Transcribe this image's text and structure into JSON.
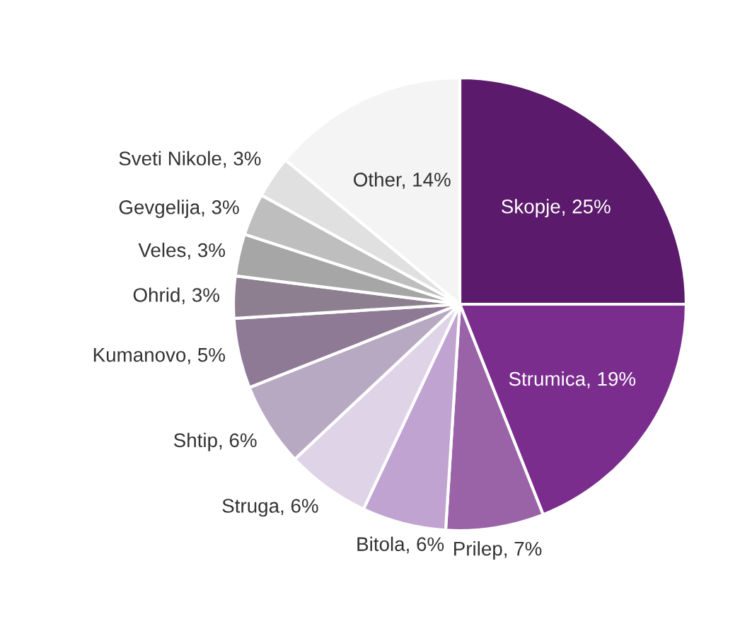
{
  "chart_data": {
    "type": "pie",
    "categories": [
      "Skopje",
      "Strumica",
      "Prilep",
      "Bitola",
      "Struga",
      "Shtip",
      "Kumanovo",
      "Ohrid",
      "Veles",
      "Gevgelija",
      "Sveti Nikole",
      "Other"
    ],
    "values": [
      25,
      19,
      7,
      6,
      6,
      6,
      5,
      3,
      3,
      3,
      3,
      14
    ],
    "value_labels": [
      "25%",
      "19%",
      "7%",
      "6%",
      "6%",
      "6%",
      "5%",
      "3%",
      "3%",
      "3%",
      "3%",
      "14%"
    ],
    "colors": [
      "#5b1a6b",
      "#7b2d8e",
      "#9a63a8",
      "#c0a3d0",
      "#dfd3e8",
      "#b8a9c2",
      "#8f7a96",
      "#8d7f90",
      "#a6a6a6",
      "#bebebe",
      "#e0e0e0",
      "#f4f4f4"
    ],
    "legend": false
  }
}
